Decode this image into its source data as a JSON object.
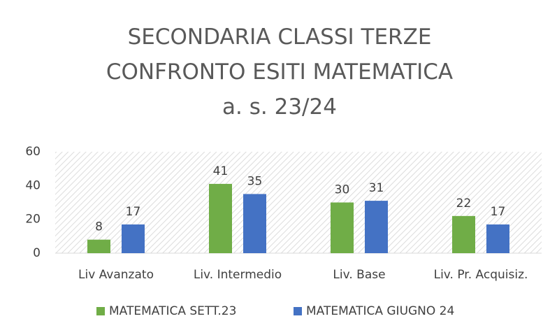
{
  "chart_data": {
    "type": "bar",
    "title": "SECONDARIA CLASSI TERZE CONFRONTO ESITI MATEMATICA a. s. 23/24",
    "categories": [
      "Liv Avanzato",
      "Liv. Intermedio",
      "Liv. Base",
      "Liv. Pr. Acquisiz."
    ],
    "series": [
      {
        "name": "MATEMATICA SETT.23",
        "color": "#70ad47",
        "values": [
          8,
          41,
          30,
          22
        ]
      },
      {
        "name": "MATEMATICA GIUGNO 24",
        "color": "#4472c4",
        "values": [
          17,
          35,
          31,
          17
        ]
      }
    ],
    "ylim": [
      0,
      60
    ],
    "yticks": [
      0,
      20,
      40,
      60
    ],
    "grid": false,
    "legend": "bottom"
  }
}
